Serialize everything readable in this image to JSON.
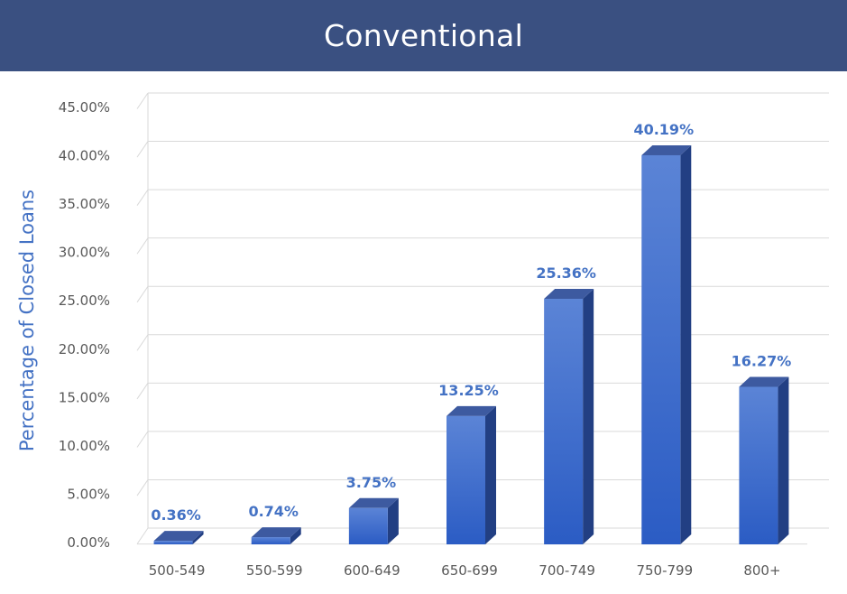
{
  "chart_data": {
    "type": "bar",
    "title": "Conventional",
    "xlabel": "",
    "ylabel": "Percentage of Closed Loans",
    "categories": [
      "500-549",
      "550-599",
      "600-649",
      "650-699",
      "700-749",
      "750-799",
      "800+"
    ],
    "values": [
      0.36,
      0.74,
      3.75,
      13.25,
      25.36,
      40.19,
      16.27
    ],
    "data_labels": [
      "0.36%",
      "0.74%",
      "3.75%",
      "13.25%",
      "25.36%",
      "40.19%",
      "16.27%"
    ],
    "ylim": [
      0,
      45
    ],
    "yticks": [
      0,
      5,
      10,
      15,
      20,
      25,
      30,
      35,
      40,
      45
    ],
    "ytick_labels": [
      "0.00%",
      "5.00%",
      "10.00%",
      "15.00%",
      "20.00%",
      "25.00%",
      "30.00%",
      "35.00%",
      "40.00%",
      "45.00%"
    ],
    "grid": true,
    "style": "3d-column",
    "colors": {
      "header": "#3a5081",
      "bar_top": "#5b84d6",
      "bar_bottom": "#2b5cc4",
      "bar_side": "#223f83",
      "bar_cap": "#3d5aa0",
      "label": "#4472c4",
      "gridline": "#d9d9d9",
      "tick_text": "#595959"
    }
  }
}
